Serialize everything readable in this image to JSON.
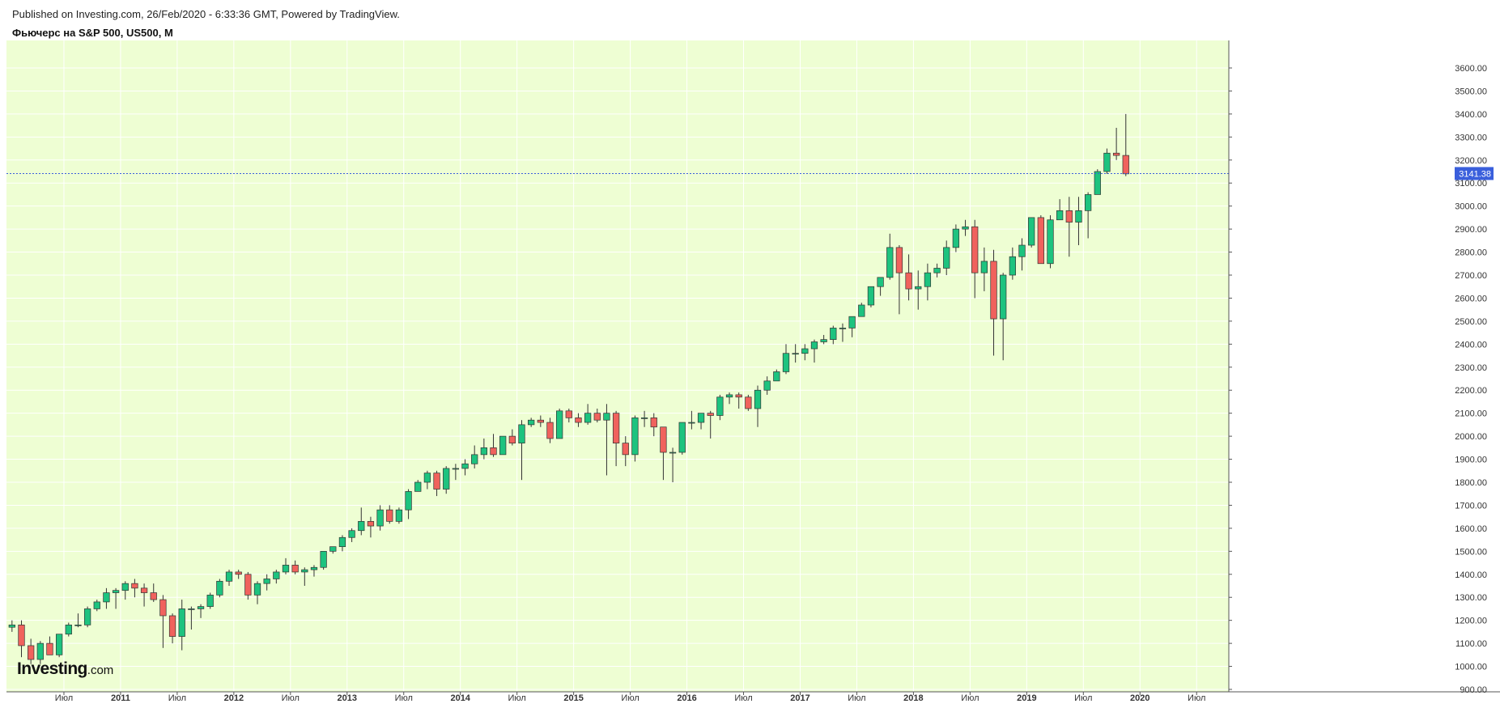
{
  "header": {
    "published": "Published on Investing.com, 26/Feb/2020 - 6:33:36 GMT, Powered by TradingView.",
    "instrument": "Фьючерс на S&P 500, US500, M"
  },
  "logo": {
    "main": "Investing",
    "domain": ".com"
  },
  "colors": {
    "plot_bg": "#eefed3",
    "grid": "#ffffff",
    "up": "#1dc37f",
    "down": "#f0625d",
    "wick": "#333333",
    "price_line": "#3a5fdc",
    "price_badge": "#3a5fdc"
  },
  "chart_data": {
    "type": "candlestick",
    "timeframe": "M",
    "ylim": [
      860,
      3700
    ],
    "y_ticks": [
      900,
      1000,
      1100,
      1200,
      1300,
      1400,
      1500,
      1600,
      1700,
      1800,
      1900,
      2000,
      2100,
      2200,
      2300,
      2400,
      2500,
      2600,
      2700,
      2800,
      2900,
      3000,
      3100,
      3200,
      3300,
      3400,
      3500,
      3600
    ],
    "y_tick_labels": [
      "900.00",
      "1000.00",
      "1100.00",
      "1200.00",
      "1300.00",
      "1400.00",
      "1500.00",
      "1600.00",
      "1700.00",
      "1800.00",
      "1900.00",
      "2000.00",
      "2100.00",
      "2200.00",
      "2300.00",
      "2400.00",
      "2500.00",
      "2600.00",
      "2700.00",
      "2800.00",
      "2900.00",
      "3000.00",
      "3100.00",
      "3200.00",
      "3300.00",
      "3400.00",
      "3500.00",
      "3600.00"
    ],
    "x_ticks": [
      {
        "label": "Июл",
        "month": 2010.5,
        "bold": false
      },
      {
        "label": "2011",
        "month": 2011,
        "bold": true
      },
      {
        "label": "Июл",
        "month": 2011.5,
        "bold": false
      },
      {
        "label": "2012",
        "month": 2012,
        "bold": true
      },
      {
        "label": "Июл",
        "month": 2012.5,
        "bold": false
      },
      {
        "label": "2013",
        "month": 2013,
        "bold": true
      },
      {
        "label": "Июл",
        "month": 2013.5,
        "bold": false
      },
      {
        "label": "2014",
        "month": 2014,
        "bold": true
      },
      {
        "label": "Июл",
        "month": 2014.5,
        "bold": false
      },
      {
        "label": "2015",
        "month": 2015,
        "bold": true
      },
      {
        "label": "Июл",
        "month": 2015.5,
        "bold": false
      },
      {
        "label": "2016",
        "month": 2016,
        "bold": true
      },
      {
        "label": "Июл",
        "month": 2016.5,
        "bold": false
      },
      {
        "label": "2017",
        "month": 2017,
        "bold": true
      },
      {
        "label": "Июл",
        "month": 2017.5,
        "bold": false
      },
      {
        "label": "2018",
        "month": 2018,
        "bold": true
      },
      {
        "label": "Июл",
        "month": 2018.5,
        "bold": false
      },
      {
        "label": "2019",
        "month": 2019,
        "bold": true
      },
      {
        "label": "Июл",
        "month": 2019.5,
        "bold": false
      },
      {
        "label": "2020",
        "month": 2020,
        "bold": true
      },
      {
        "label": "Июл",
        "month": 2020.5,
        "bold": false
      }
    ],
    "x_range_months": [
      2010.0,
      2020.92
    ],
    "first_candle_month": "2010-01",
    "last_price": 3141.38,
    "last_price_label": "3141.38",
    "candles": [
      [
        1170,
        1200,
        1150,
        1180
      ],
      [
        1180,
        1200,
        1040,
        1090
      ],
      [
        1090,
        1120,
        1010,
        1030
      ],
      [
        1030,
        1110,
        1010,
        1100
      ],
      [
        1100,
        1130,
        1050,
        1050
      ],
      [
        1050,
        1140,
        1040,
        1140
      ],
      [
        1140,
        1190,
        1130,
        1180
      ],
      [
        1180,
        1230,
        1170,
        1180
      ],
      [
        1180,
        1260,
        1170,
        1250
      ],
      [
        1250,
        1290,
        1240,
        1280
      ],
      [
        1280,
        1340,
        1250,
        1320
      ],
      [
        1320,
        1340,
        1250,
        1330
      ],
      [
        1330,
        1370,
        1290,
        1360
      ],
      [
        1360,
        1380,
        1300,
        1340
      ],
      [
        1340,
        1360,
        1260,
        1320
      ],
      [
        1320,
        1360,
        1280,
        1290
      ],
      [
        1290,
        1310,
        1080,
        1220
      ],
      [
        1220,
        1230,
        1100,
        1130
      ],
      [
        1130,
        1290,
        1070,
        1250
      ],
      [
        1250,
        1260,
        1160,
        1250
      ],
      [
        1250,
        1270,
        1210,
        1260
      ],
      [
        1260,
        1320,
        1250,
        1310
      ],
      [
        1310,
        1380,
        1300,
        1370
      ],
      [
        1370,
        1420,
        1350,
        1410
      ],
      [
        1410,
        1420,
        1380,
        1400
      ],
      [
        1400,
        1410,
        1290,
        1310
      ],
      [
        1310,
        1370,
        1270,
        1360
      ],
      [
        1360,
        1400,
        1330,
        1380
      ],
      [
        1380,
        1420,
        1360,
        1410
      ],
      [
        1410,
        1470,
        1400,
        1440
      ],
      [
        1440,
        1460,
        1400,
        1410
      ],
      [
        1410,
        1430,
        1350,
        1420
      ],
      [
        1420,
        1440,
        1390,
        1430
      ],
      [
        1430,
        1500,
        1420,
        1500
      ],
      [
        1500,
        1520,
        1490,
        1520
      ],
      [
        1520,
        1570,
        1500,
        1560
      ],
      [
        1560,
        1600,
        1540,
        1590
      ],
      [
        1590,
        1690,
        1570,
        1630
      ],
      [
        1630,
        1650,
        1560,
        1610
      ],
      [
        1610,
        1700,
        1590,
        1680
      ],
      [
        1680,
        1700,
        1620,
        1630
      ],
      [
        1630,
        1690,
        1620,
        1680
      ],
      [
        1680,
        1770,
        1640,
        1760
      ],
      [
        1760,
        1810,
        1760,
        1800
      ],
      [
        1800,
        1850,
        1770,
        1840
      ],
      [
        1840,
        1850,
        1740,
        1770
      ],
      [
        1770,
        1870,
        1750,
        1860
      ],
      [
        1860,
        1880,
        1810,
        1860
      ],
      [
        1860,
        1900,
        1830,
        1880
      ],
      [
        1880,
        1960,
        1860,
        1920
      ],
      [
        1920,
        1990,
        1900,
        1950
      ],
      [
        1950,
        2010,
        1910,
        1920
      ],
      [
        1920,
        2000,
        1930,
        2000
      ],
      [
        2000,
        2030,
        1960,
        1970
      ],
      [
        1970,
        2070,
        1810,
        2050
      ],
      [
        2050,
        2080,
        2040,
        2070
      ],
      [
        2070,
        2090,
        2040,
        2060
      ],
      [
        2060,
        2080,
        1970,
        1990
      ],
      [
        1990,
        2120,
        1990,
        2110
      ],
      [
        2110,
        2120,
        2060,
        2080
      ],
      [
        2080,
        2100,
        2040,
        2060
      ],
      [
        2060,
        2140,
        2050,
        2100
      ],
      [
        2100,
        2120,
        2060,
        2070
      ],
      [
        2070,
        2140,
        1830,
        2100
      ],
      [
        2100,
        2110,
        1870,
        1970
      ],
      [
        1970,
        2000,
        1870,
        1920
      ],
      [
        1920,
        2090,
        1890,
        2080
      ],
      [
        2080,
        2110,
        2040,
        2080
      ],
      [
        2080,
        2100,
        2000,
        2040
      ],
      [
        2040,
        2040,
        1810,
        1930
      ],
      [
        1930,
        1950,
        1800,
        1930
      ],
      [
        1930,
        2060,
        1920,
        2060
      ],
      [
        2060,
        2110,
        2030,
        2060
      ],
      [
        2060,
        2100,
        2030,
        2100
      ],
      [
        2100,
        2110,
        1990,
        2090
      ],
      [
        2090,
        2180,
        2070,
        2170
      ],
      [
        2170,
        2190,
        2140,
        2180
      ],
      [
        2180,
        2190,
        2120,
        2170
      ],
      [
        2170,
        2180,
        2110,
        2120
      ],
      [
        2120,
        2220,
        2040,
        2200
      ],
      [
        2200,
        2260,
        2180,
        2240
      ],
      [
        2240,
        2290,
        2260,
        2280
      ],
      [
        2280,
        2400,
        2270,
        2360
      ],
      [
        2360,
        2400,
        2320,
        2360
      ],
      [
        2360,
        2400,
        2330,
        2380
      ],
      [
        2380,
        2420,
        2320,
        2410
      ],
      [
        2410,
        2440,
        2400,
        2420
      ],
      [
        2420,
        2480,
        2400,
        2470
      ],
      [
        2470,
        2490,
        2410,
        2470
      ],
      [
        2470,
        2520,
        2430,
        2520
      ],
      [
        2520,
        2580,
        2520,
        2570
      ],
      [
        2570,
        2650,
        2560,
        2650
      ],
      [
        2650,
        2690,
        2610,
        2690
      ],
      [
        2690,
        2880,
        2680,
        2820
      ],
      [
        2820,
        2830,
        2530,
        2710
      ],
      [
        2710,
        2790,
        2590,
        2640
      ],
      [
        2640,
        2720,
        2550,
        2650
      ],
      [
        2650,
        2750,
        2590,
        2710
      ],
      [
        2710,
        2750,
        2690,
        2730
      ],
      [
        2730,
        2850,
        2700,
        2820
      ],
      [
        2820,
        2920,
        2800,
        2900
      ],
      [
        2900,
        2940,
        2870,
        2910
      ],
      [
        2910,
        2940,
        2600,
        2710
      ],
      [
        2710,
        2820,
        2630,
        2760
      ],
      [
        2760,
        2810,
        2350,
        2510
      ],
      [
        2510,
        2710,
        2330,
        2700
      ],
      [
        2700,
        2820,
        2680,
        2780
      ],
      [
        2780,
        2860,
        2720,
        2830
      ],
      [
        2830,
        2950,
        2820,
        2950
      ],
      [
        2950,
        2960,
        2750,
        2750
      ],
      [
        2750,
        2960,
        2730,
        2940
      ],
      [
        2940,
        3030,
        2940,
        2980
      ],
      [
        2980,
        3040,
        2780,
        2930
      ],
      [
        2930,
        3040,
        2830,
        2980
      ],
      [
        2980,
        3060,
        2860,
        3050
      ],
      [
        3050,
        3160,
        3050,
        3150
      ],
      [
        3150,
        3250,
        3140,
        3230
      ],
      [
        3230,
        3340,
        3200,
        3220
      ],
      [
        3220,
        3400,
        3130,
        3140
      ]
    ]
  }
}
